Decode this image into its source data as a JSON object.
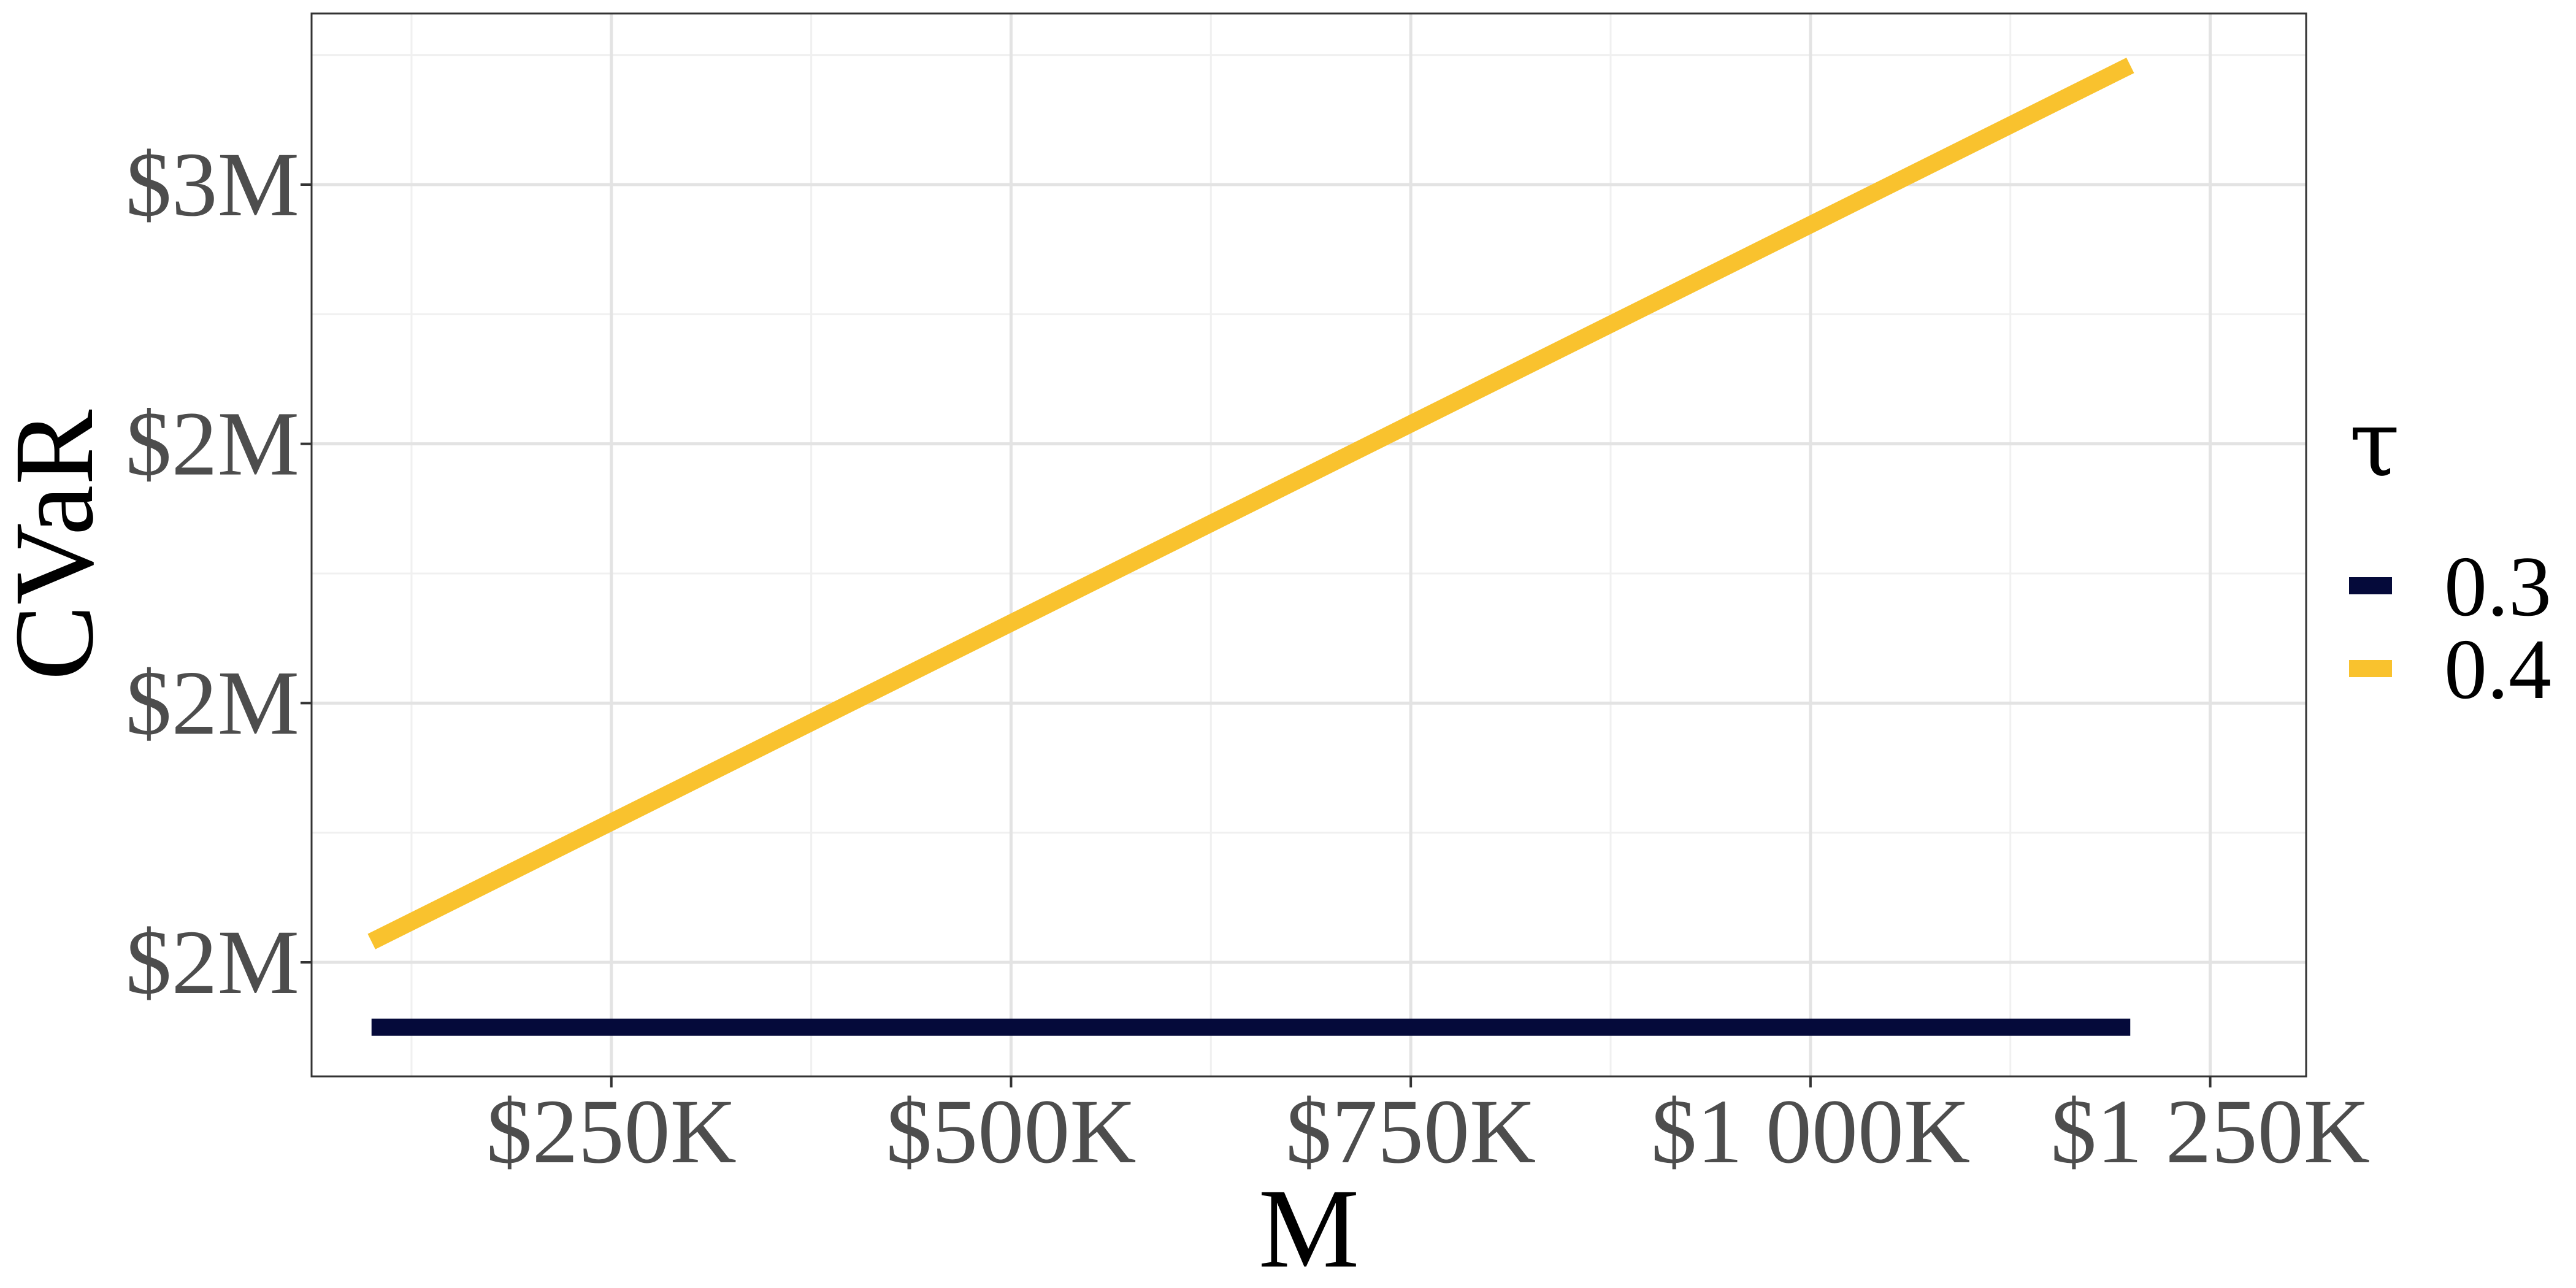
{
  "chart_data": {
    "type": "line",
    "xlabel": "M",
    "ylabel": "CVaR",
    "legend_title": "τ",
    "legend_position": "right",
    "grid": true,
    "xlim": [
      62500,
      1310000
    ],
    "ylim": [
      1280000,
      3330000
    ],
    "x_ticks": [
      {
        "value": 250000,
        "label": "$250K"
      },
      {
        "value": 500000,
        "label": "$500K"
      },
      {
        "value": 750000,
        "label": "$750K"
      },
      {
        "value": 1000000,
        "label": "$1 000K"
      },
      {
        "value": 1250000,
        "label": "$1 250K"
      }
    ],
    "x_minor_ticks": [
      125000,
      375000,
      625000,
      875000,
      1125000
    ],
    "y_ticks": [
      {
        "value": 1500000,
        "label": "$2M"
      },
      {
        "value": 2000000,
        "label": "$2M"
      },
      {
        "value": 2500000,
        "label": "$2M"
      },
      {
        "value": 3000000,
        "label": "$3M"
      }
    ],
    "y_minor_ticks": [
      1750000,
      2250000,
      2750000,
      3250000
    ],
    "series": [
      {
        "name": "0.3",
        "color": "#050a3a",
        "x": [
          100000,
          1200000
        ],
        "y": [
          1375000,
          1375000
        ]
      },
      {
        "name": "0.4",
        "color": "#f9c22e",
        "x": [
          100000,
          1200000
        ],
        "y": [
          1540000,
          3230000
        ]
      }
    ]
  }
}
